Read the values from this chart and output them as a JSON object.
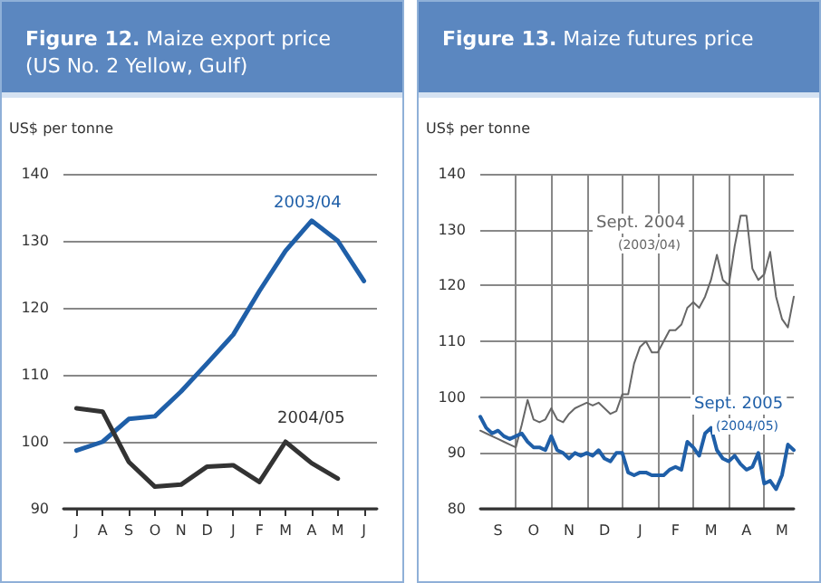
{
  "chart_data": [
    {
      "type": "line",
      "title": "Figure 12. Maize export price (US No. 2 Yellow, Gulf)",
      "ylabel": "US$ per tonne",
      "categories": [
        "J",
        "A",
        "S",
        "O",
        "N",
        "D",
        "J",
        "F",
        "M",
        "A",
        "M",
        "J"
      ],
      "series": [
        {
          "name": "2003/04",
          "color": "#1f5fa8",
          "values": [
            98.7,
            100,
            103.4,
            103.8,
            107.5,
            111.7,
            116,
            122.5,
            128.5,
            133,
            130,
            124
          ]
        },
        {
          "name": "2004/05",
          "color": "#333333",
          "values": [
            105,
            104.5,
            97,
            93.3,
            93.6,
            96.3,
            96.5,
            94,
            100,
            96.8,
            94.5,
            null
          ]
        }
      ],
      "ylim": [
        90,
        140
      ],
      "yticks": [
        90,
        100,
        110,
        120,
        130,
        140
      ],
      "grid": "y",
      "legend": false,
      "marker": "none",
      "line_style": "solid"
    },
    {
      "type": "line",
      "title": "Figure 13. Maize futures price",
      "ylabel": "US$ per tonne",
      "categories": [
        null,
        null,
        null,
        "S",
        null,
        null,
        null,
        null,
        null,
        "O",
        null,
        null,
        null,
        null,
        null,
        "N",
        null,
        null,
        null,
        null,
        null,
        "D",
        null,
        null,
        null,
        null,
        null,
        "J",
        null,
        null,
        null,
        null,
        null,
        "F",
        null,
        null,
        null,
        null,
        null,
        "M",
        null,
        null,
        null,
        null,
        null,
        "A",
        null,
        null,
        null,
        null,
        null,
        "M",
        null,
        null
      ],
      "series": [
        {
          "name": "Sept. 2004",
          "color": "#666666",
          "values": [
            94,
            93.5,
            93,
            92.5,
            92,
            91.5,
            91,
            95,
            99.5,
            96,
            95.5,
            96,
            98,
            96,
            95.5,
            97,
            98,
            98.5,
            99,
            98.5,
            99,
            98,
            97,
            97.5,
            100.5,
            100.5,
            106,
            109,
            110,
            108,
            108,
            110,
            112,
            112,
            113,
            116,
            117,
            116,
            118,
            121,
            125.5,
            121,
            120,
            127,
            132.5,
            132.5,
            123,
            121,
            122,
            126,
            118,
            114,
            112.5,
            118
          ]
        },
        {
          "name": "Sept. 2005",
          "color": "#1f5fa8",
          "values": [
            96.5,
            94.5,
            93.5,
            94,
            93,
            92.5,
            93,
            93.5,
            92,
            91,
            91,
            90.5,
            93,
            90.5,
            90,
            89,
            90,
            89.5,
            90,
            89.5,
            90.5,
            89,
            88.5,
            90,
            90,
            86.5,
            86,
            86.5,
            86.5,
            86,
            86,
            86,
            87,
            87.5,
            87,
            92,
            91,
            89.5,
            93.5,
            94.5,
            90.5,
            89,
            88.5,
            89.5,
            88,
            87,
            87.5,
            90,
            84.5,
            85,
            83.5,
            86,
            91.5,
            90.5
          ]
        }
      ],
      "annotations": [
        "(2003/04)",
        "(2004/05)"
      ],
      "ylim": [
        80,
        140
      ],
      "yticks": [
        80,
        90,
        100,
        110,
        120,
        130,
        140
      ],
      "grid": true,
      "legend": false,
      "marker": "none",
      "line_style": "solid"
    }
  ]
}
